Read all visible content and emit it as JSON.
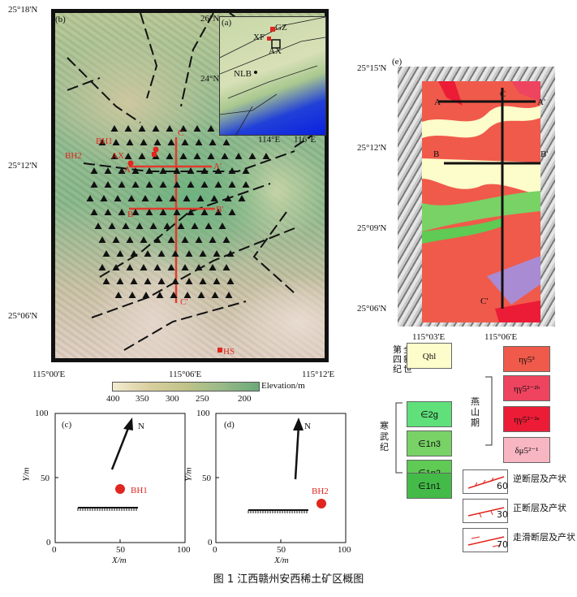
{
  "figure": {
    "caption": "图 1    江西赣州安西稀土矿区概图"
  },
  "panel_b": {
    "label": "(b)",
    "lat_ticks": [
      "25°18'N",
      "25°12'N",
      "25°06'N"
    ],
    "lon_ticks": [
      "115°00'E",
      "115°06'E",
      "115°12'E"
    ],
    "sites": {
      "bh1": "BH1",
      "bh2": "BH2",
      "ax": "AX",
      "hs": "HS"
    },
    "profiles": {
      "a": "A",
      "a_prime": "A'",
      "b": "B",
      "b_prime": "B'",
      "c": "C",
      "c_prime": "C'"
    },
    "elevation": {
      "label": "Elevation/m",
      "ticks": [
        "400",
        "350",
        "300",
        "250",
        "200"
      ]
    }
  },
  "panel_a": {
    "label": "(a)",
    "lat_ticks": [
      "26°N",
      "24°N"
    ],
    "lon_ticks": [
      "114°E",
      "116°E"
    ],
    "places": {
      "gz": "GZ",
      "xf": "XF",
      "ax": "AX",
      "nlb": "NLB"
    }
  },
  "panel_e": {
    "label": "(e)",
    "lat_ticks": [
      "25°15'N",
      "25°12'N",
      "25°09'N",
      "25°06'N"
    ],
    "lon_ticks": [
      "115°03'E",
      "115°06'E"
    ],
    "profiles": {
      "a": "A",
      "a_prime": "A'",
      "b": "B",
      "b_prime": "B'",
      "c": "C",
      "c_prime": "C'"
    }
  },
  "legend": {
    "quaternary": {
      "label": "第全四新纪世",
      "unit": "Qhl",
      "color": "#fdfccb"
    },
    "cambrian": {
      "label": "寒武纪",
      "units": [
        {
          "unit": "∈2g",
          "color": "#5fe07a"
        },
        {
          "unit": "∈1n3",
          "color": "#78d266"
        },
        {
          "unit": "∈1n2",
          "color": "#5fca54"
        },
        {
          "unit": "∈1n1",
          "color": "#44bb48"
        }
      ]
    },
    "yanshan": {
      "label": "燕山期",
      "units": [
        {
          "unit": "ηγ5³",
          "color": "#f05a4a"
        },
        {
          "unit": "ηγ5²⁻²ᵇ",
          "color": "#ee4460"
        },
        {
          "unit": "ηγ5²⁻²ᵃ",
          "color": "#ec1c36"
        },
        {
          "unit": "δμ5²⁻¹",
          "color": "#f7b6c2"
        }
      ]
    },
    "faults": [
      {
        "label": "逆断层及产状",
        "dip": "60"
      },
      {
        "label": "正断层及产状",
        "dip": "30"
      },
      {
        "label": "走滑断层及产状",
        "dip": "70"
      }
    ]
  },
  "panel_c": {
    "label": "(c)",
    "borehole": "BH1",
    "north": "N",
    "xlabel": "X/m",
    "ylabel": "Y/m",
    "x_ticks": [
      "0",
      "50",
      "100"
    ],
    "y_ticks": [
      "0",
      "50",
      "100"
    ]
  },
  "panel_d": {
    "label": "(d)",
    "borehole": "BH2",
    "north": "N",
    "xlabel": "X/m",
    "ylabel": "Y/m",
    "x_ticks": [
      "0",
      "50",
      "100"
    ],
    "y_ticks": [
      "0",
      "50",
      "100"
    ]
  },
  "colors": {
    "site_red": "#e0261e",
    "profile_red": "#e23b2e",
    "legend_border": "#666666"
  }
}
